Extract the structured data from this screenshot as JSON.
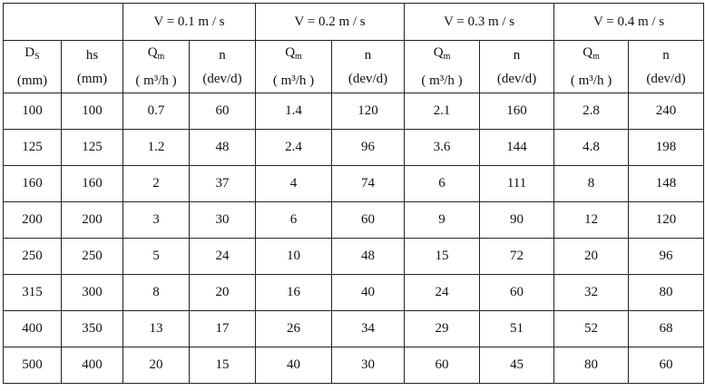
{
  "table": {
    "groups": [
      "V = 0.1 m / s",
      "V = 0.2 m / s",
      "V = 0.3 m / s",
      "V = 0.4 m / s"
    ],
    "columns": [
      {
        "symbol": "D",
        "subscript": "S",
        "unit": "(mm)"
      },
      {
        "symbol": "hs",
        "unit": "(mm)"
      },
      {
        "symbol": "Q",
        "subscript": "m",
        "unit": "( m³/h )"
      },
      {
        "symbol": "n",
        "unit": "(dev/d)"
      },
      {
        "symbol": "Q",
        "subscript": "m",
        "unit": "( m³/h )"
      },
      {
        "symbol": "n",
        "unit": "(dev/d)"
      },
      {
        "symbol": "Q",
        "subscript": "m",
        "unit": "( m³/h )"
      },
      {
        "symbol": "n",
        "unit": "(dev/d)"
      },
      {
        "symbol": "Q",
        "subscript": "m",
        "unit": "( m³/h )"
      },
      {
        "symbol": "n",
        "unit": "(dev/d)"
      }
    ],
    "rows": [
      [
        100,
        100,
        0.7,
        60,
        1.4,
        120,
        2.1,
        160,
        2.8,
        240
      ],
      [
        125,
        125,
        1.2,
        48,
        2.4,
        96,
        3.6,
        144,
        4.8,
        198
      ],
      [
        160,
        160,
        2,
        37,
        4,
        74,
        6,
        111,
        8,
        148
      ],
      [
        200,
        200,
        3,
        30,
        6,
        60,
        9,
        90,
        12,
        120
      ],
      [
        250,
        250,
        5,
        24,
        10,
        48,
        15,
        72,
        20,
        96
      ],
      [
        315,
        300,
        8,
        20,
        16,
        40,
        24,
        60,
        32,
        80
      ],
      [
        400,
        350,
        13,
        17,
        26,
        34,
        29,
        51,
        52,
        68
      ],
      [
        500,
        400,
        20,
        15,
        40,
        30,
        60,
        45,
        80,
        60
      ]
    ]
  }
}
